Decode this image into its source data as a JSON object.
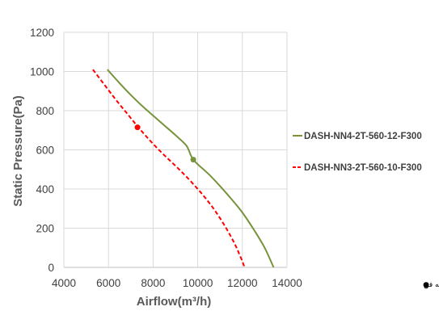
{
  "chart_data": {
    "type": "line",
    "xlabel": "Airflow(m³/h)",
    "ylabel": "Static Pressure(Pa)",
    "xlim": [
      4000,
      14000
    ],
    "ylim": [
      0,
      1200
    ],
    "x_ticks": [
      4000,
      6000,
      8000,
      10000,
      12000,
      14000
    ],
    "y_ticks": [
      0,
      200,
      400,
      600,
      800,
      1000,
      1200
    ],
    "x_tick_labels": [
      "4000",
      "6000",
      "8000",
      "10000",
      "12000",
      "14000"
    ],
    "y_tick_labels": [
      "0",
      "200",
      "400",
      "600",
      "800",
      "1000",
      "1200"
    ],
    "grid": true,
    "legend_position": "right",
    "series": [
      {
        "name": "DASH-NN4-2T-560-12-F300",
        "color": "#77933C",
        "style": "solid",
        "x": [
          5950,
          6500,
          7000,
          7500,
          8000,
          8500,
          9000,
          9500,
          9800,
          10500,
          11000,
          11500,
          12000,
          12500,
          13000,
          13400
        ],
        "y": [
          1010,
          940,
          880,
          825,
          775,
          725,
          675,
          620,
          550,
          475,
          415,
          350,
          280,
          195,
          100,
          0
        ],
        "marker": {
          "x": 9800,
          "y": 550
        }
      },
      {
        "name": "DASH-NN3-2T-560-10-F300",
        "color": "#FF0000",
        "style": "dashed",
        "x": [
          5300,
          5800,
          6300,
          6800,
          7300,
          7800,
          8300,
          8800,
          9300,
          9800,
          10300,
          10800,
          11300,
          11700,
          12000,
          12100
        ],
        "y": [
          1010,
          935,
          860,
          790,
          720,
          655,
          595,
          540,
          485,
          425,
          360,
          285,
          195,
          110,
          30,
          0
        ],
        "marker": {
          "x": 7300,
          "y": 715
        }
      }
    ],
    "annotation": {
      "symbol": "●",
      "text": "نقطه عملکرد بهینه فن"
    }
  }
}
